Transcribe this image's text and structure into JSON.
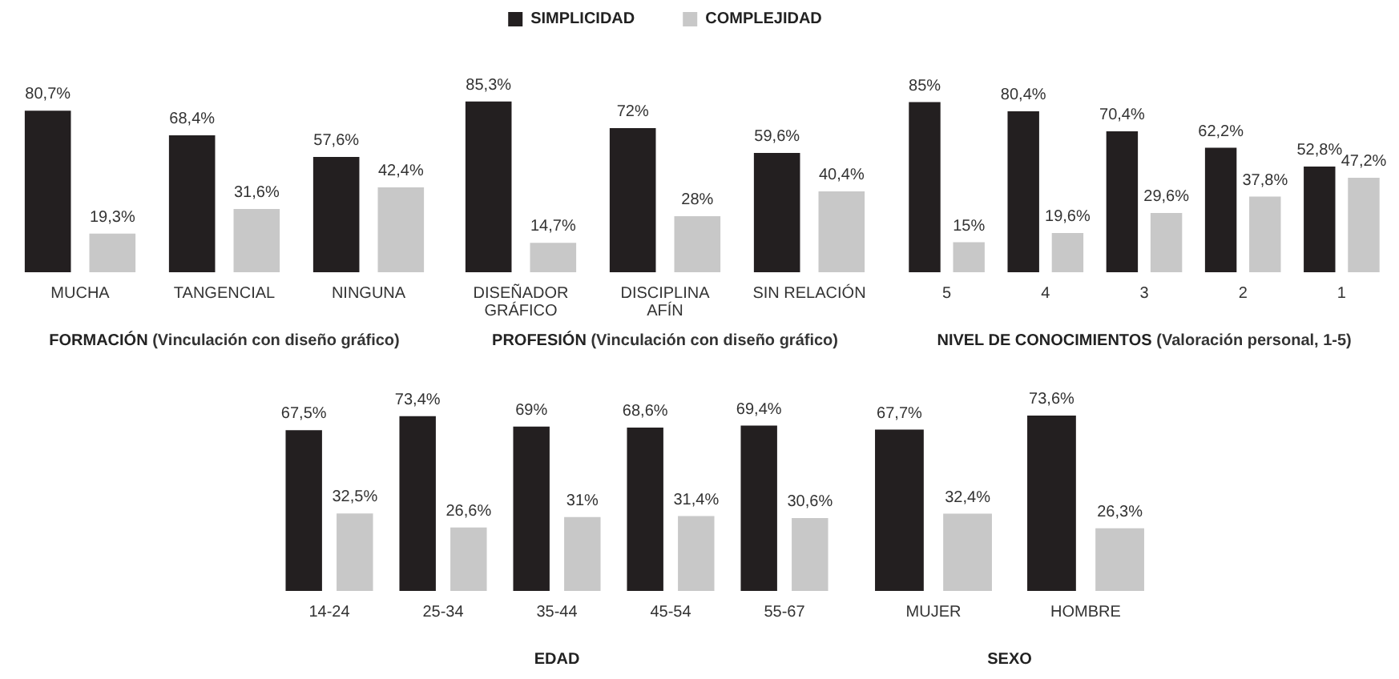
{
  "chart_data": [
    {
      "type": "bar",
      "title": "FORMACIÓN (Vinculación con diseño gráfico)",
      "categories": [
        "MUCHA",
        "TANGENCIAL",
        "NINGUNA"
      ],
      "legend": false,
      "series": [
        {
          "color": "#231f20",
          "values": [
            80.7,
            68.4,
            57.6
          ],
          "value_labels": [
            "80,7%",
            "68,4%",
            "57,6%"
          ]
        },
        {
          "color": "#c8c8c8",
          "values": [
            19.3,
            31.6,
            42.4
          ],
          "value_labels": [
            "19,3%",
            "31,6%",
            "42,4%"
          ]
        }
      ]
    },
    {
      "type": "bar",
      "title": "PROFESIÓN (Vinculación con diseño gráfico)",
      "categories": [
        "DISEÑADOR\nGRÁFICO",
        "DISCIPLINA\nAFÍN",
        "SIN RELACIÓN"
      ],
      "legend": "top",
      "series": [
        {
          "name": "SIMPLICIDAD",
          "color": "#231f20",
          "values": [
            85.3,
            72,
            59.6
          ],
          "value_labels": [
            "85,3%",
            "72%",
            "59,6%"
          ]
        },
        {
          "name": "COMPLEJIDAD",
          "color": "#c8c8c8",
          "values": [
            14.7,
            28,
            40.4
          ],
          "value_labels": [
            "14,7%",
            "28%",
            "40,4%"
          ]
        }
      ]
    },
    {
      "type": "bar",
      "title": "NIVEL DE CONOCIMIENTOS (Valoración personal, 1-5)",
      "categories": [
        "5",
        "4",
        "3",
        "2",
        "1"
      ],
      "legend": false,
      "series": [
        {
          "color": "#231f20",
          "values": [
            85,
            80.4,
            70.4,
            62.2,
            52.8
          ],
          "value_labels": [
            "85%",
            "80,4%",
            "70,4%",
            "62,2%",
            "52,8%"
          ]
        },
        {
          "color": "#c8c8c8",
          "values": [
            15,
            19.6,
            29.6,
            37.8,
            47.2
          ],
          "value_labels": [
            "15%",
            "19,6%",
            "29,6%",
            "37,8%",
            "47,2%"
          ]
        }
      ]
    },
    {
      "type": "bar",
      "title": "EDAD",
      "categories": [
        "14-24",
        "25-34",
        "35-44",
        "45-54",
        "55-67"
      ],
      "legend": false,
      "series": [
        {
          "color": "#231f20",
          "values": [
            67.5,
            73.4,
            69,
            68.6,
            69.4
          ],
          "value_labels": [
            "67,5%",
            "73,4%",
            "69%",
            "68,6%",
            "69,4%"
          ]
        },
        {
          "color": "#c8c8c8",
          "values": [
            32.5,
            26.6,
            31,
            31.4,
            30.6
          ],
          "value_labels": [
            "32,5%",
            "26,6%",
            "31%",
            "31,4%",
            "30,6%"
          ]
        }
      ]
    },
    {
      "type": "bar",
      "title": "SEXO",
      "categories": [
        "MUJER",
        "HOMBRE"
      ],
      "legend": false,
      "series": [
        {
          "color": "#231f20",
          "values": [
            67.7,
            73.6
          ],
          "value_labels": [
            "67,7%",
            "73,6%"
          ]
        },
        {
          "color": "#c8c8c8",
          "values": [
            32.4,
            26.3
          ],
          "value_labels": [
            "32,4%",
            "26,3%"
          ]
        }
      ]
    }
  ]
}
